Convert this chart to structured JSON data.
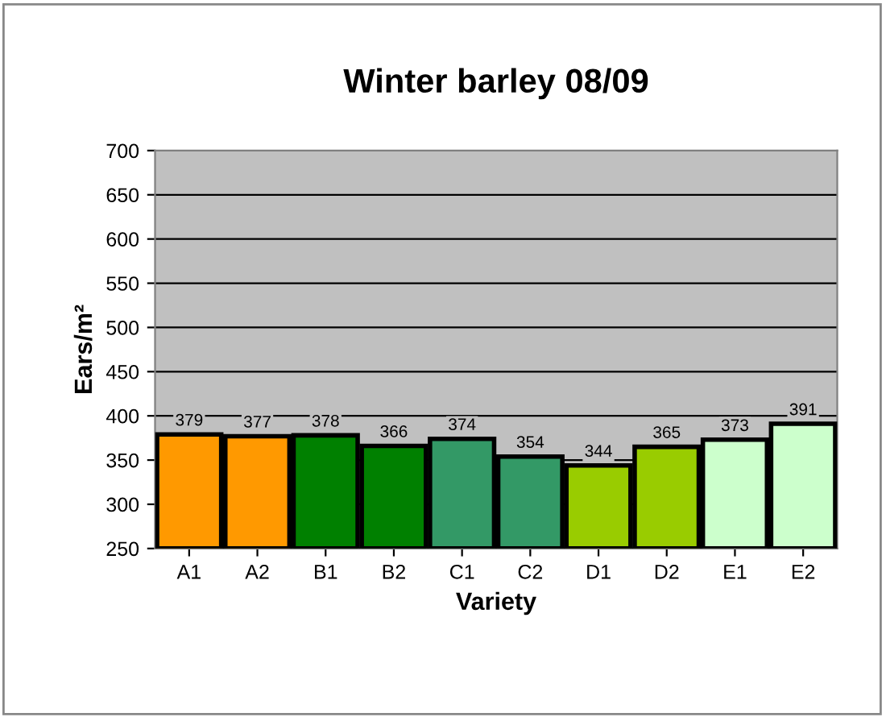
{
  "chart_data": {
    "type": "bar",
    "title": "Winter barley 08/09",
    "xlabel": "Variety",
    "ylabel": "Ears/m²",
    "categories": [
      "A1",
      "A2",
      "B1",
      "B2",
      "C1",
      "C2",
      "D1",
      "D2",
      "E1",
      "E2"
    ],
    "values": [
      379,
      377,
      378,
      366,
      374,
      354,
      344,
      365,
      373,
      391
    ],
    "colors": [
      "#ff9900",
      "#ff9900",
      "#008000",
      "#008000",
      "#339966",
      "#339966",
      "#99cc00",
      "#99cc00",
      "#ccffcc",
      "#ccffcc"
    ],
    "ylim": [
      250,
      700
    ],
    "yticks": [
      250,
      300,
      350,
      400,
      450,
      500,
      550,
      600,
      650,
      700
    ],
    "grid": "y",
    "data_labels": true
  }
}
